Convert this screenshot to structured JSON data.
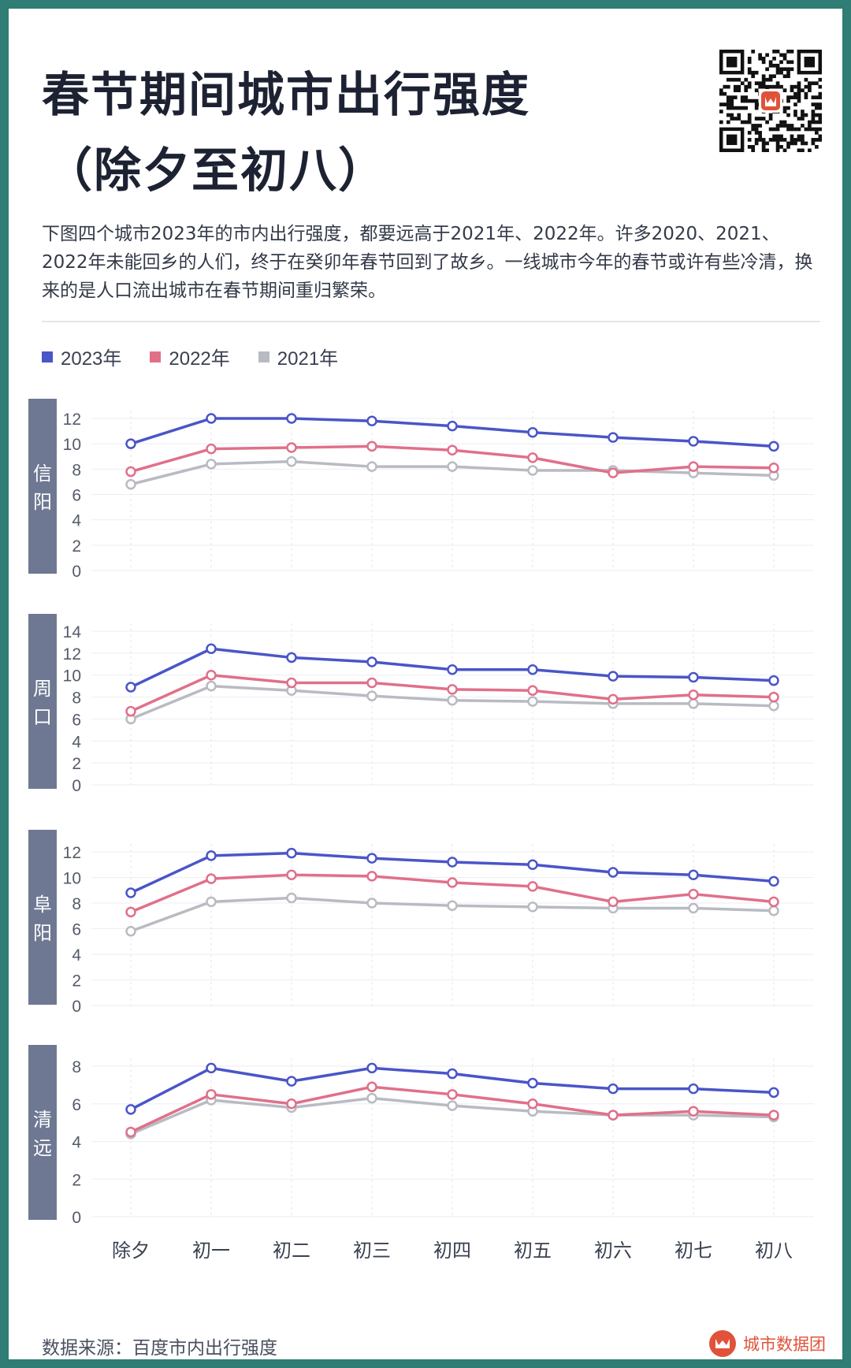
{
  "title_line1": "春节期间城市出行强度",
  "title_line2": "（除夕至初八）",
  "description": "下图四个城市2023年的市内出行强度，都要远高于2021年、2022年。许多2020、2021、2022年未能回乡的人们，终于在癸卯年春节回到了故乡。一线城市今年的春节或许有些冷清，换来的是人口流出城市在春节期间重归繁荣。",
  "legend": [
    {
      "label": "2023年",
      "color": "#4a55c8"
    },
    {
      "label": "2022年",
      "color": "#e0708a"
    },
    {
      "label": "2021年",
      "color": "#b9bbc2"
    }
  ],
  "footer": {
    "source": "数据来源：百度市内出行强度",
    "brand": "城市数据团"
  },
  "icons": {
    "qr": "qr-code-icon",
    "brand": "brand-logo-icon"
  },
  "chart_data": [
    {
      "type": "line",
      "panel": "信阳",
      "categories": [
        "除夕",
        "初一",
        "初二",
        "初三",
        "初四",
        "初五",
        "初六",
        "初七",
        "初八"
      ],
      "ylim": [
        0,
        12
      ],
      "yticks": [
        0,
        2,
        4,
        6,
        8,
        10,
        12
      ],
      "series": [
        {
          "name": "2023年",
          "values": [
            10.0,
            12.0,
            12.0,
            11.8,
            11.4,
            10.9,
            10.5,
            10.2,
            9.8
          ]
        },
        {
          "name": "2022年",
          "values": [
            7.8,
            9.6,
            9.7,
            9.8,
            9.5,
            8.9,
            7.7,
            8.2,
            8.1
          ]
        },
        {
          "name": "2021年",
          "values": [
            6.8,
            8.4,
            8.6,
            8.2,
            8.2,
            7.9,
            7.9,
            7.7,
            7.5
          ]
        }
      ]
    },
    {
      "type": "line",
      "panel": "周口",
      "categories": [
        "除夕",
        "初一",
        "初二",
        "初三",
        "初四",
        "初五",
        "初六",
        "初七",
        "初八"
      ],
      "ylim": [
        0,
        14
      ],
      "yticks": [
        0,
        2,
        4,
        6,
        8,
        10,
        12,
        14
      ],
      "series": [
        {
          "name": "2023年",
          "values": [
            8.9,
            12.4,
            11.6,
            11.2,
            10.5,
            10.5,
            9.9,
            9.8,
            9.5
          ]
        },
        {
          "name": "2022年",
          "values": [
            6.7,
            10.0,
            9.3,
            9.3,
            8.7,
            8.6,
            7.8,
            8.2,
            8.0
          ]
        },
        {
          "name": "2021年",
          "values": [
            6.0,
            9.0,
            8.6,
            8.1,
            7.7,
            7.6,
            7.4,
            7.4,
            7.2
          ]
        }
      ]
    },
    {
      "type": "line",
      "panel": "阜阳",
      "categories": [
        "除夕",
        "初一",
        "初二",
        "初三",
        "初四",
        "初五",
        "初六",
        "初七",
        "初八"
      ],
      "ylim": [
        0,
        12
      ],
      "yticks": [
        0,
        2,
        4,
        6,
        8,
        10,
        12
      ],
      "series": [
        {
          "name": "2023年",
          "values": [
            8.8,
            11.7,
            11.9,
            11.5,
            11.2,
            11.0,
            10.4,
            10.2,
            9.7
          ]
        },
        {
          "name": "2022年",
          "values": [
            7.3,
            9.9,
            10.2,
            10.1,
            9.6,
            9.3,
            8.1,
            8.7,
            8.1
          ]
        },
        {
          "name": "2021年",
          "values": [
            5.8,
            8.1,
            8.4,
            8.0,
            7.8,
            7.7,
            7.6,
            7.6,
            7.4
          ]
        }
      ]
    },
    {
      "type": "line",
      "panel": "清远",
      "categories": [
        "除夕",
        "初一",
        "初二",
        "初三",
        "初四",
        "初五",
        "初六",
        "初七",
        "初八"
      ],
      "ylim": [
        0,
        9
      ],
      "yticks": [
        0,
        2,
        4,
        6,
        8
      ],
      "series": [
        {
          "name": "2023年",
          "values": [
            5.7,
            7.9,
            7.2,
            7.9,
            7.6,
            7.1,
            6.8,
            6.8,
            6.6
          ]
        },
        {
          "name": "2022年",
          "values": [
            4.5,
            6.5,
            6.0,
            6.9,
            6.5,
            6.0,
            5.4,
            5.6,
            5.4
          ]
        },
        {
          "name": "2021年",
          "values": [
            4.4,
            6.2,
            5.8,
            6.3,
            5.9,
            5.6,
            5.4,
            5.4,
            5.3
          ]
        }
      ]
    }
  ]
}
